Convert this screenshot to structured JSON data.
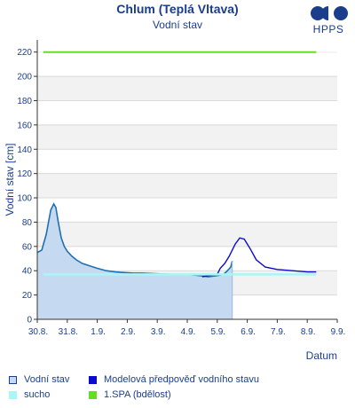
{
  "header": {
    "title": "Chlum (Teplá Vltava)",
    "subtitle": "Vodní stav",
    "logo_text": "HPPS"
  },
  "chart_data": {
    "type": "area",
    "title": "Vodní stav",
    "xlabel": "Datum",
    "ylabel": "Vodní stav [cm]",
    "ylim": [
      0,
      230
    ],
    "xlim": [
      0,
      10
    ],
    "x_ticks": [
      "30.8.",
      "31.8.",
      "1.9.",
      "2.9.",
      "3.9.",
      "4.9.",
      "5.9.",
      "6.9.",
      "7.9.",
      "8.9.",
      "9.9."
    ],
    "y_ticks": [
      0,
      20,
      40,
      60,
      80,
      100,
      120,
      140,
      160,
      180,
      200,
      220
    ],
    "grid": true,
    "legend_position": "bottom",
    "series": [
      {
        "name": "Vodní stav",
        "style": "area",
        "color": "#1f6fb5",
        "fill": "#c5daf0",
        "x": [
          0.0,
          0.15,
          0.3,
          0.45,
          0.55,
          0.62,
          0.7,
          0.8,
          0.9,
          1.0,
          1.15,
          1.3,
          1.5,
          1.75,
          2.0,
          2.3,
          2.6,
          2.9,
          3.2,
          3.5,
          4.0,
          4.5,
          5.0,
          5.4,
          5.7,
          6.0,
          6.2,
          6.3,
          6.45,
          6.5
        ],
        "y": [
          55,
          57,
          70,
          90,
          95,
          92,
          80,
          67,
          60,
          56,
          52,
          49,
          46,
          44,
          42,
          40,
          39,
          38.5,
          38,
          38,
          37.5,
          37,
          37,
          36,
          35,
          36,
          37,
          39,
          43,
          48
        ]
      },
      {
        "name": "Modelová předpověď vodního stavu",
        "style": "line",
        "color": "#0a0ad0",
        "x": [
          5.5,
          5.7,
          6.0,
          6.1,
          6.25,
          6.4,
          6.6,
          6.75,
          6.9,
          7.1,
          7.3,
          7.6,
          8.0,
          8.5,
          9.0,
          9.3
        ],
        "y": [
          35,
          36,
          37,
          42,
          46,
          52,
          62,
          67,
          66,
          58,
          49,
          43,
          41,
          40,
          39,
          39
        ]
      },
      {
        "name": "sucho",
        "style": "hline",
        "color": "#aaf5f5",
        "y": 37
      },
      {
        "name": "1.SPA (bdělost)",
        "style": "hline",
        "color": "#66dd22",
        "y": 220
      }
    ]
  },
  "legend": {
    "items": [
      {
        "label": "Vodní stav",
        "swatch_fill": "#c5daf0",
        "swatch_border": "#1a3e8c"
      },
      {
        "label": "Modelová předpověď vodního stavu",
        "swatch_fill": "#0a0ad0",
        "swatch_border": "#0a0ad0"
      },
      {
        "label": "sucho",
        "swatch_fill": "#aaf5f5",
        "swatch_border": "#aaf5f5"
      },
      {
        "label": "1.SPA (bdělost)",
        "swatch_fill": "#66dd22",
        "swatch_border": "#66dd22"
      }
    ]
  }
}
